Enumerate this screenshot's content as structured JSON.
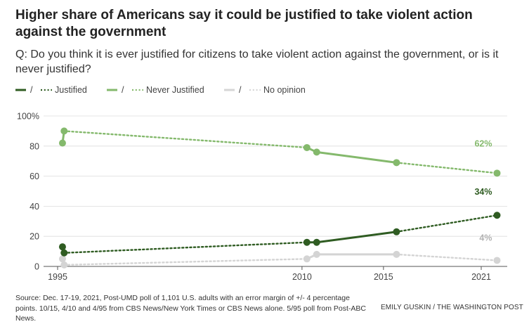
{
  "title": "Higher share of Americans say it could be justified to take violent action against the government",
  "subtitle": "Q: Do you think it is ever justified for citizens to take violent action against the government, or is it never justified?",
  "legend": [
    {
      "slash": "/",
      "label": "Justified",
      "color": "#2f5c22"
    },
    {
      "slash": "/",
      "label": "Never Justified",
      "color": "#84b96c"
    },
    {
      "slash": "/",
      "label": "No opinion",
      "color": "#d6d6d6"
    }
  ],
  "source": "Source: Dec. 17-19, 2021, Post-UMD poll of 1,101 U.S. adults with an error margin of +/- 4 percentage points. 10/15, 4/10 and 4/95 from CBS News/New York Times or CBS News alone. 5/95 poll from Post-ABC News.",
  "credit": "EMILY GUSKIN / THE WASHINGTON POST",
  "chart_data": {
    "type": "line",
    "xlim": [
      1995,
      2022
    ],
    "ylim": [
      0,
      100
    ],
    "x_ticks": [
      "1995",
      "2010",
      "2015",
      "2021"
    ],
    "x_tick_values": [
      1995,
      2010,
      2015,
      2021
    ],
    "y_ticks": [
      "0",
      "20",
      "40",
      "60",
      "80",
      "100%"
    ],
    "y_tick_values": [
      0,
      20,
      40,
      60,
      80,
      100
    ],
    "grid": true,
    "legend_position": "top-left",
    "series": [
      {
        "name": "Justified",
        "color": "#2f5c22",
        "points": [
          {
            "x": 1995.3,
            "y": 13
          },
          {
            "x": 1995.4,
            "y": 9
          },
          {
            "x": 2010.3,
            "y": 16
          },
          {
            "x": 2010.9,
            "y": 16
          },
          {
            "x": 2015.8,
            "y": 23
          },
          {
            "x": 2021.97,
            "y": 34
          }
        ],
        "end_label": "34%"
      },
      {
        "name": "Never Justified",
        "color": "#84b96c",
        "points": [
          {
            "x": 1995.3,
            "y": 82
          },
          {
            "x": 1995.4,
            "y": 90
          },
          {
            "x": 2010.3,
            "y": 79
          },
          {
            "x": 2010.9,
            "y": 76
          },
          {
            "x": 2015.8,
            "y": 69
          },
          {
            "x": 2021.97,
            "y": 62
          }
        ],
        "end_label": "62%"
      },
      {
        "name": "No opinion",
        "color": "#d4d4d4",
        "points": [
          {
            "x": 1995.3,
            "y": 5
          },
          {
            "x": 1995.4,
            "y": 1
          },
          {
            "x": 2010.3,
            "y": 5
          },
          {
            "x": 2010.9,
            "y": 8
          },
          {
            "x": 2015.8,
            "y": 8
          },
          {
            "x": 2021.97,
            "y": 4
          }
        ],
        "end_label": "4%",
        "end_label_color": "#b3b3b3"
      }
    ]
  }
}
